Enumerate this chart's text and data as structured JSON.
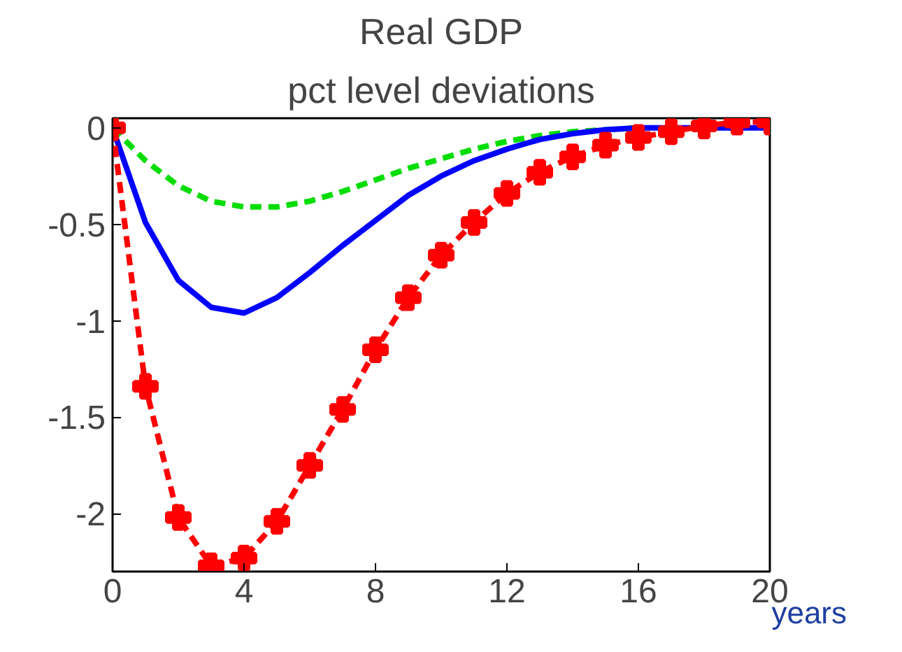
{
  "chart_data": {
    "type": "line",
    "title": "Real GDP",
    "subtitle": "pct level deviations",
    "xlabel": "years",
    "x": [
      0,
      1,
      2,
      3,
      4,
      5,
      6,
      7,
      8,
      9,
      10,
      11,
      12,
      13,
      14,
      15,
      16,
      17,
      18,
      19,
      20
    ],
    "xlim": [
      0,
      20
    ],
    "xticks": [
      0,
      4,
      8,
      12,
      16,
      20
    ],
    "ylim": [
      -2.3,
      0.05
    ],
    "yticks": [
      0,
      -0.5,
      -1,
      -1.5,
      -2
    ],
    "grid": false,
    "series": [
      {
        "color": "#00dd00",
        "line_style": "dashed",
        "marker": "none",
        "values": [
          0,
          -0.17,
          -0.3,
          -0.38,
          -0.41,
          -0.41,
          -0.38,
          -0.33,
          -0.27,
          -0.21,
          -0.16,
          -0.11,
          -0.07,
          -0.04,
          -0.02,
          -0.01,
          0,
          null,
          null,
          null,
          null
        ]
      },
      {
        "color": "#0000ff",
        "line_style": "solid",
        "marker": "none",
        "values": [
          0,
          -0.49,
          -0.79,
          -0.93,
          -0.96,
          -0.88,
          -0.75,
          -0.61,
          -0.48,
          -0.35,
          -0.25,
          -0.17,
          -0.11,
          -0.06,
          -0.03,
          -0.01,
          0,
          0,
          0,
          0,
          0
        ]
      },
      {
        "color": "#ff0000",
        "line_style": "dashed",
        "marker": "cross",
        "values": [
          0,
          -1.34,
          -2.02,
          -2.27,
          -2.23,
          -2.04,
          -1.75,
          -1.46,
          -1.15,
          -0.88,
          -0.66,
          -0.49,
          -0.34,
          -0.23,
          -0.15,
          -0.09,
          -0.05,
          -0.02,
          0.01,
          0.03,
          0.03
        ]
      }
    ]
  }
}
